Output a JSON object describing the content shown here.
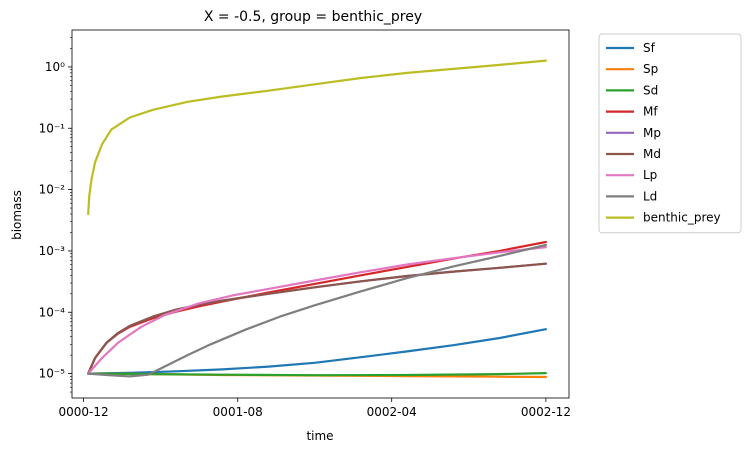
{
  "chart_data": {
    "type": "line",
    "title": "X = -0.5, group = benthic_prey",
    "xlabel": "time",
    "ylabel": "biomass",
    "y_scale": "log",
    "ylim": [
      4e-06,
      4
    ],
    "xlim": [
      -0.05,
      2.1
    ],
    "x_ticks": [
      {
        "value": 0,
        "label": "0000-12"
      },
      {
        "value": 0.667,
        "label": "0001-08"
      },
      {
        "value": 1.333,
        "label": "0002-04"
      },
      {
        "value": 2.0,
        "label": "0002-12"
      }
    ],
    "y_ticks": [
      {
        "value": 1e-05,
        "label": "10⁻⁵"
      },
      {
        "value": 0.0001,
        "label": "10⁻⁴"
      },
      {
        "value": 0.001,
        "label": "10⁻³"
      },
      {
        "value": 0.01,
        "label": "10⁻²"
      },
      {
        "value": 0.1,
        "label": "10⁻¹"
      },
      {
        "value": 1,
        "label": "10⁰"
      }
    ],
    "grid": false,
    "legend_position": "outside-right",
    "series": [
      {
        "name": "Sf",
        "color": "#1f77b4",
        "x": [
          0.02,
          0.2,
          0.4,
          0.6,
          0.8,
          1.0,
          1.2,
          1.4,
          1.6,
          1.8,
          2.0
        ],
        "y": [
          1e-05,
          1.03e-05,
          1.09e-05,
          1.17e-05,
          1.3e-05,
          1.5e-05,
          1.85e-05,
          2.3e-05,
          2.9e-05,
          3.8e-05,
          5.3e-05
        ]
      },
      {
        "name": "Sp",
        "color": "#ff7f0e",
        "x": [
          0.02,
          0.3,
          0.6,
          1.0,
          1.4,
          1.8,
          2.0
        ],
        "y": [
          1e-05,
          9.8e-06,
          9.5e-06,
          9.3e-06,
          9.1e-06,
          8.9e-06,
          8.8e-06
        ]
      },
      {
        "name": "Sd",
        "color": "#2ca02c",
        "x": [
          0.02,
          0.3,
          0.6,
          1.0,
          1.4,
          1.8,
          2.0
        ],
        "y": [
          1e-05,
          9.8e-06,
          9.6e-06,
          9.4e-06,
          9.5e-06,
          9.8e-06,
          1.02e-05
        ]
      },
      {
        "name": "Mf",
        "color": "#d62728",
        "x": [
          0.02,
          0.05,
          0.1,
          0.15,
          0.2,
          0.3,
          0.4,
          0.5,
          0.6,
          0.8,
          1.0,
          1.2,
          1.4,
          1.6,
          1.8,
          2.0
        ],
        "y": [
          1e-05,
          1.8e-05,
          3.2e-05,
          4.5e-05,
          5.8e-05,
          8e-05,
          0.000102,
          0.000125,
          0.00015,
          0.00021,
          0.00029,
          0.0004,
          0.00055,
          0.00075,
          0.001,
          0.0014
        ]
      },
      {
        "name": "Mp",
        "color": "#9467bd",
        "x": [
          0.02,
          0.05,
          0.1,
          0.15,
          0.2,
          0.3,
          0.4,
          0.5,
          0.6,
          0.8,
          1.0,
          1.2,
          1.4,
          1.6,
          1.8,
          2.0
        ],
        "y": [
          1e-05,
          1.8e-05,
          3.2e-05,
          4.6e-05,
          6e-05,
          8.5e-05,
          0.00011,
          0.000133,
          0.000155,
          0.0002,
          0.000255,
          0.00032,
          0.00039,
          0.00046,
          0.00053,
          0.00062
        ]
      },
      {
        "name": "Md",
        "color": "#8c564b",
        "x": [
          0.02,
          0.05,
          0.1,
          0.15,
          0.2,
          0.3,
          0.4,
          0.5,
          0.6,
          0.8,
          1.0,
          1.2,
          1.4,
          1.6,
          1.8,
          2.0
        ],
        "y": [
          1e-05,
          1.8e-05,
          3.2e-05,
          4.6e-05,
          6e-05,
          8.5e-05,
          0.00011,
          0.000133,
          0.000155,
          0.0002,
          0.000255,
          0.00032,
          0.00039,
          0.00046,
          0.00053,
          0.00062
        ]
      },
      {
        "name": "Lp",
        "color": "#e377c2",
        "x": [
          0.02,
          0.08,
          0.15,
          0.25,
          0.35,
          0.5,
          0.65,
          0.8,
          1.0,
          1.2,
          1.4,
          1.6,
          1.8,
          2.0
        ],
        "y": [
          1e-05,
          1.8e-05,
          3.2e-05,
          5.8e-05,
          9e-05,
          0.00014,
          0.00019,
          0.00024,
          0.00033,
          0.00045,
          0.0006,
          0.00076,
          0.00095,
          0.00115
        ]
      },
      {
        "name": "Ld",
        "color": "#7f7f7f",
        "x": [
          0.02,
          0.1,
          0.2,
          0.28,
          0.35,
          0.45,
          0.55,
          0.7,
          0.85,
          1.0,
          1.2,
          1.4,
          1.6,
          1.8,
          2.0
        ],
        "y": [
          1e-05,
          9.5e-06,
          9e-06,
          9.6e-06,
          1.3e-05,
          2e-05,
          3e-05,
          5.2e-05,
          8.5e-05,
          0.00013,
          0.00022,
          0.00036,
          0.00056,
          0.00083,
          0.00125
        ]
      },
      {
        "name": "benthic_prey",
        "color": "#bcbd22",
        "x": [
          0.02,
          0.025,
          0.035,
          0.05,
          0.08,
          0.12,
          0.2,
          0.3,
          0.45,
          0.6,
          0.8,
          1.0,
          1.2,
          1.4,
          1.6,
          1.8,
          2.0
        ],
        "y": [
          0.004,
          0.008,
          0.015,
          0.028,
          0.055,
          0.095,
          0.15,
          0.2,
          0.27,
          0.33,
          0.41,
          0.52,
          0.66,
          0.8,
          0.93,
          1.08,
          1.27
        ]
      }
    ]
  }
}
